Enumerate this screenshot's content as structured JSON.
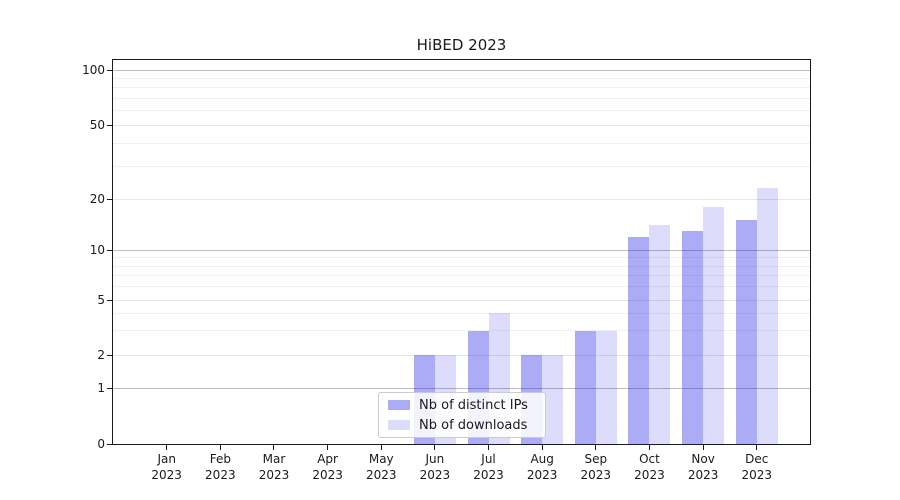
{
  "chart_data": {
    "type": "bar",
    "title": "HiBED 2023",
    "categories": [
      "Jan",
      "Feb",
      "Mar",
      "Apr",
      "May",
      "Jun",
      "Jul",
      "Aug",
      "Sep",
      "Oct",
      "Nov",
      "Dec"
    ],
    "category_year": "2023",
    "series": [
      {
        "name": "Nb of distinct IPs",
        "color": "rgba(25,25,230,0.36)",
        "values": [
          0,
          0,
          0,
          0,
          0,
          2,
          3,
          2,
          3,
          12,
          13,
          15
        ]
      },
      {
        "name": "Nb of downloads",
        "color": "rgba(25,25,230,0.15)",
        "values": [
          0,
          0,
          0,
          0,
          0,
          2,
          4,
          2,
          3,
          14,
          18,
          23
        ]
      }
    ],
    "yaxis": {
      "scale": "symlog",
      "ticks": [
        0,
        1,
        2,
        5,
        10,
        20,
        50,
        100
      ],
      "minor_ticks": [
        3,
        4,
        6,
        7,
        8,
        9,
        30,
        40,
        60,
        70,
        80,
        90
      ],
      "range": [
        0,
        113
      ]
    },
    "xlabel": "",
    "ylabel": "",
    "grid": true,
    "legend": {
      "position": "lower center"
    },
    "colors": {
      "major_grid": "#bdbdbd",
      "labeled_grid": "#e6e6e6",
      "minor_grid": "#f0f0f0",
      "axis": "#1a1a1a"
    }
  }
}
